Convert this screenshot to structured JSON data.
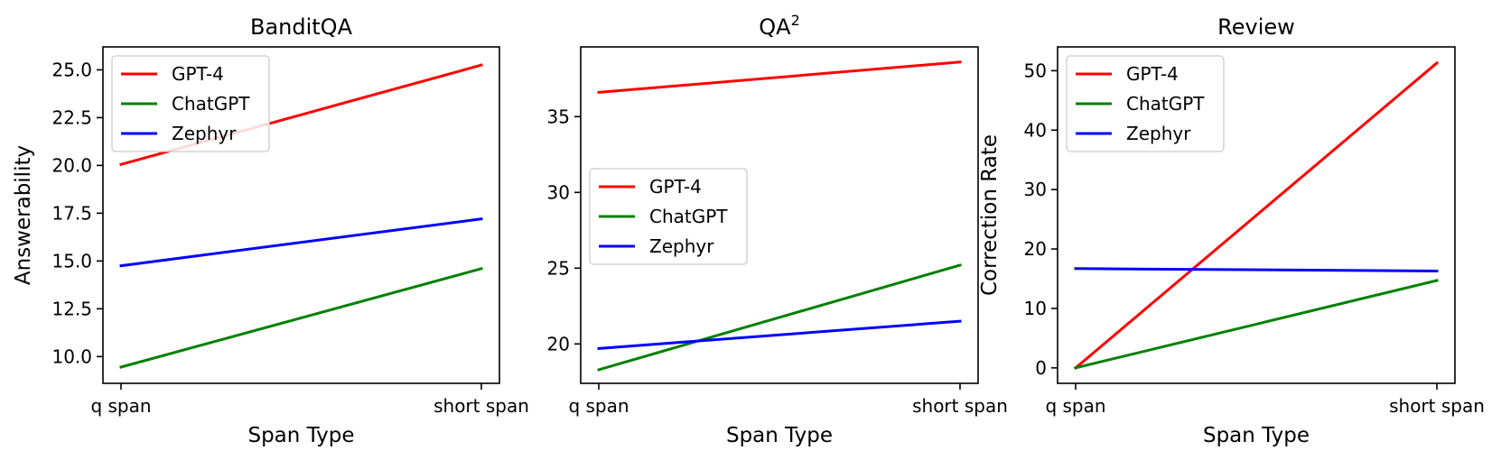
{
  "chart_data": [
    {
      "type": "line",
      "title": "BanditQA",
      "xlabel": "Span Type",
      "ylabel": "Answerability",
      "categories": [
        "q span",
        "short span"
      ],
      "ylim": [
        8.6,
        26.2
      ],
      "yticks": [
        "10.0",
        "12.5",
        "15.0",
        "17.5",
        "20.0",
        "22.5",
        "25.0"
      ],
      "ytick_values": [
        10,
        12.5,
        15,
        17.5,
        20,
        22.5,
        25
      ],
      "legend_position": "upper-left",
      "series": [
        {
          "name": "GPT-4",
          "color": "#ff0000",
          "values": [
            20.05,
            25.25
          ]
        },
        {
          "name": "ChatGPT",
          "color": "#008000",
          "values": [
            9.45,
            14.6
          ]
        },
        {
          "name": "Zephyr",
          "color": "#0000ff",
          "values": [
            14.75,
            17.2
          ]
        }
      ]
    },
    {
      "type": "line",
      "title": "QA",
      "title_sup": "2",
      "xlabel": "Span Type",
      "ylabel": "",
      "categories": [
        "q span",
        "short span"
      ],
      "ylim": [
        17.4,
        39.6
      ],
      "yticks": [
        "20",
        "25",
        "30",
        "35"
      ],
      "ytick_values": [
        20,
        25,
        30,
        35
      ],
      "legend_position": "center-left",
      "series": [
        {
          "name": "GPT-4",
          "color": "#ff0000",
          "values": [
            36.6,
            38.6
          ]
        },
        {
          "name": "ChatGPT",
          "color": "#008000",
          "values": [
            18.3,
            25.2
          ]
        },
        {
          "name": "Zephyr",
          "color": "#0000ff",
          "values": [
            19.7,
            21.5
          ]
        }
      ]
    },
    {
      "type": "line",
      "title": "Review",
      "xlabel": "Span Type",
      "ylabel": "Correction Rate",
      "categories": [
        "q span",
        "short span"
      ],
      "ylim": [
        -2.6,
        54.0
      ],
      "yticks": [
        "0",
        "10",
        "20",
        "30",
        "40",
        "50"
      ],
      "ytick_values": [
        0,
        10,
        20,
        30,
        40,
        50
      ],
      "legend_position": "upper-left",
      "series": [
        {
          "name": "GPT-4",
          "color": "#ff0000",
          "values": [
            0.0,
            51.3
          ]
        },
        {
          "name": "ChatGPT",
          "color": "#008000",
          "values": [
            0.0,
            14.7
          ]
        },
        {
          "name": "Zephyr",
          "color": "#0000ff",
          "values": [
            16.7,
            16.3
          ]
        }
      ]
    }
  ]
}
